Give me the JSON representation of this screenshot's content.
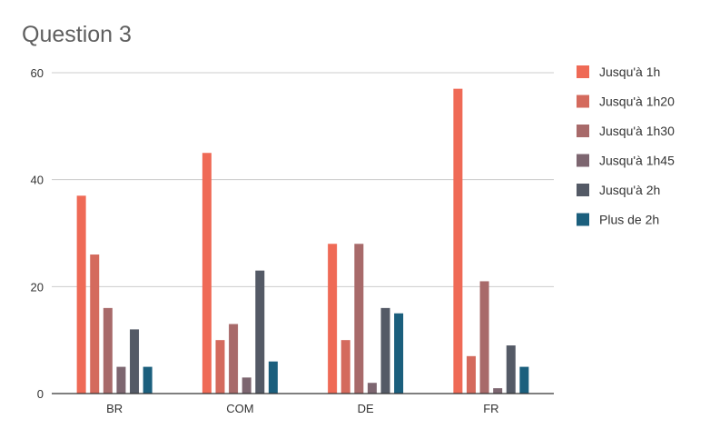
{
  "chart_data": {
    "type": "bar",
    "title": "Question 3",
    "xlabel": "",
    "ylabel": "",
    "ylim": [
      0,
      60
    ],
    "yticks": [
      0,
      20,
      40,
      60
    ],
    "grid": true,
    "legend_position": "right",
    "categories": [
      "BR",
      "COM",
      "DE",
      "FR"
    ],
    "series": [
      {
        "name": "Jusqu'à 1h",
        "color": "#ef6a56",
        "values": [
          37,
          45,
          28,
          57
        ]
      },
      {
        "name": "Jusqu'à 1h20",
        "color": "#d46a5d",
        "values": [
          26,
          10,
          10,
          7
        ]
      },
      {
        "name": "Jusqu'à 1h30",
        "color": "#a86a6a",
        "values": [
          16,
          13,
          28,
          21
        ]
      },
      {
        "name": "Jusqu'à 1h45",
        "color": "#7d6670",
        "values": [
          5,
          3,
          2,
          1
        ]
      },
      {
        "name": "Jusqu'à 2h",
        "color": "#545a66",
        "values": [
          12,
          23,
          16,
          9
        ]
      },
      {
        "name": "Plus de 2h",
        "color": "#1b5f7d",
        "values": [
          5,
          6,
          15,
          5
        ]
      }
    ]
  }
}
